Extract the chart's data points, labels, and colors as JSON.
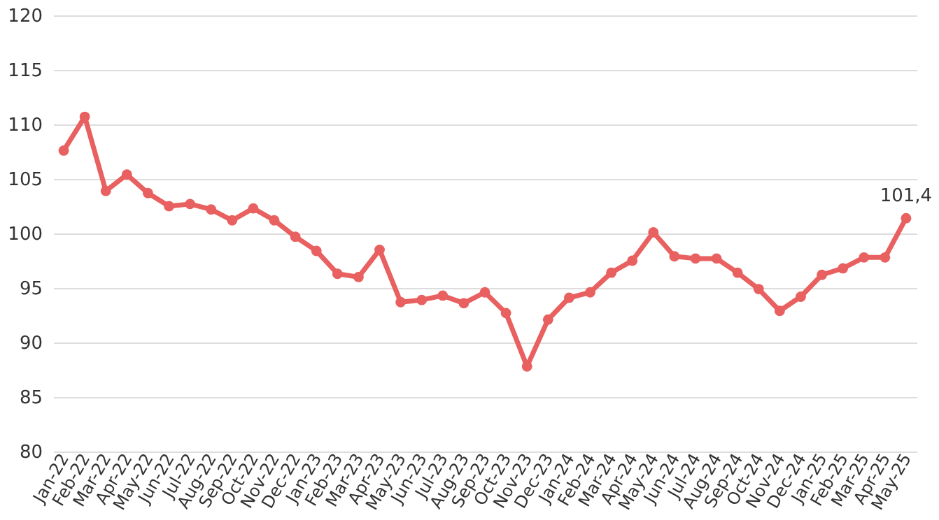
{
  "chart_data": {
    "type": "line",
    "categories": [
      "Jan-22",
      "Feb-22",
      "Mar-22",
      "Apr-22",
      "May-22",
      "Jun-22",
      "Jul-22",
      "Aug-22",
      "Sep-22",
      "Oct-22",
      "Nov-22",
      "Dec-22",
      "Jan-23",
      "Feb-23",
      "Mar-23",
      "Apr-23",
      "May-23",
      "Jun-23",
      "Jul-23",
      "Aug-23",
      "Sep-23",
      "Oct-23",
      "Nov-23",
      "Dec-23",
      "Jan-24",
      "Feb-24",
      "Mar-24",
      "Apr-24",
      "May-24",
      "Jun-24",
      "Jul-24",
      "Aug-24",
      "Sep-24",
      "Oct-24",
      "Nov-24",
      "Dec-24",
      "Jan-25",
      "Feb-25",
      "Mar-25",
      "Apr-25",
      "May-25"
    ],
    "series": [
      {
        "color": "#e8605f",
        "values": [
          107.6,
          110.7,
          103.9,
          105.4,
          103.7,
          102.5,
          102.7,
          102.2,
          101.2,
          102.3,
          101.2,
          99.7,
          98.4,
          96.3,
          96.0,
          98.5,
          93.7,
          93.9,
          94.3,
          93.6,
          94.6,
          92.7,
          87.8,
          92.1,
          94.1,
          94.6,
          96.4,
          97.5,
          100.1,
          97.9,
          97.7,
          97.7,
          96.4,
          94.9,
          92.9,
          94.2,
          96.2,
          96.8,
          97.8,
          97.8,
          101.4
        ]
      }
    ],
    "ylim": [
      80,
      120
    ],
    "yticks": [
      80,
      85,
      90,
      95,
      100,
      105,
      110,
      115,
      120
    ],
    "grid": "y",
    "marker": "circle",
    "line_style": "solid",
    "annotations": [
      {
        "text": "101,4",
        "x": "May-25",
        "y": 101.4
      }
    ]
  }
}
